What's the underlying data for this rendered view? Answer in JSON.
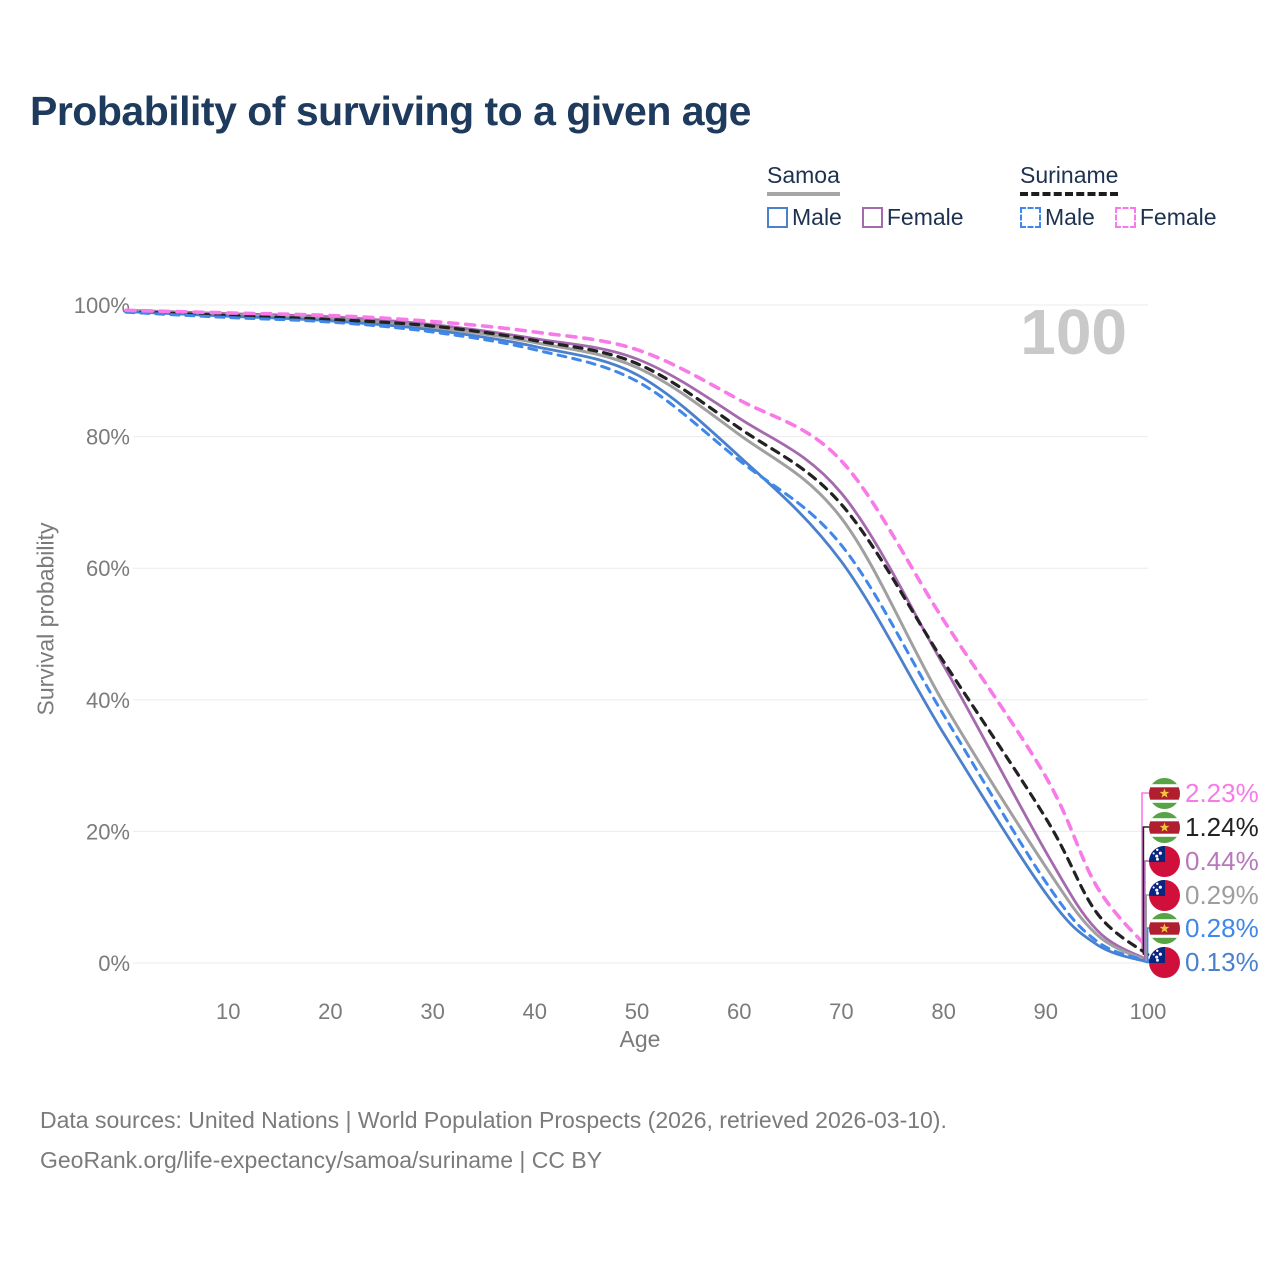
{
  "header": {
    "title": "Probability of surviving to a given age"
  },
  "legend": {
    "groups": [
      {
        "name": "Samoa",
        "line_style": "solid",
        "underline_color": "#a6a6a6",
        "items": [
          {
            "label": "Male",
            "series": "samoa_male"
          },
          {
            "label": "Female",
            "series": "samoa_female"
          }
        ]
      },
      {
        "name": "Suriname",
        "line_style": "dashed",
        "underline_color": "#1d1d1d",
        "items": [
          {
            "label": "Male",
            "series": "suriname_male"
          },
          {
            "label": "Female",
            "series": "suriname_female"
          }
        ]
      }
    ]
  },
  "watermark": "100",
  "axes": {
    "x_label": "Age",
    "y_label": "Survival probability"
  },
  "chart_data": {
    "type": "line",
    "title": "Probability of surviving to a given age",
    "xlabel": "Age",
    "ylabel": "Survival probability",
    "xlim": [
      0,
      100
    ],
    "ylim": [
      0,
      100
    ],
    "grid": "horizontal-only",
    "grid_color": "#ebebeb",
    "tick_color": "#7b7b7b",
    "legend_position": "top-right",
    "x_ticks": [
      10,
      20,
      30,
      40,
      50,
      60,
      70,
      80,
      90,
      100
    ],
    "y_ticks": [
      0,
      20,
      40,
      60,
      80,
      100
    ],
    "y_tick_suffix": "%",
    "x": [
      0,
      10,
      20,
      30,
      40,
      50,
      60,
      70,
      80,
      90,
      95,
      100
    ],
    "series": [
      {
        "key": "suriname_female",
        "name": "Suriname Female",
        "country": "Suriname",
        "sex": "Female",
        "color": "#f87ae8",
        "label_color": "#f87ae8",
        "dashed": true,
        "width": 3.6,
        "flag": "suriname",
        "end_label": "2.23%",
        "end_value": 2.23,
        "values": [
          99.2,
          98.8,
          98.4,
          97.5,
          95.9,
          93.2,
          85.6,
          76.3,
          52.1,
          28.3,
          11.6,
          2.23
        ]
      },
      {
        "key": "suriname_total",
        "name": "Suriname",
        "country": "Suriname",
        "sex": "Both",
        "color": "#222222",
        "label_color": "#222222",
        "dashed": true,
        "width": 3.2,
        "flag": "suriname",
        "end_label": "1.24%",
        "end_value": 1.24,
        "values": [
          99.0,
          98.4,
          97.8,
          96.8,
          94.6,
          91.1,
          81.3,
          69.7,
          45.8,
          22.0,
          7.6,
          1.24
        ]
      },
      {
        "key": "samoa_female",
        "name": "Samoa Female",
        "country": "Samoa",
        "sex": "Female",
        "color": "#a569ae",
        "label_color": "#b878ba",
        "dashed": false,
        "width": 2.8,
        "flag": "samoa",
        "end_label": "0.44%",
        "end_value": 0.44,
        "values": [
          99.2,
          98.7,
          98.2,
          97.0,
          94.9,
          91.8,
          82.8,
          71.4,
          45.2,
          16.9,
          5.0,
          0.44
        ]
      },
      {
        "key": "samoa_total",
        "name": "Samoa",
        "country": "Samoa",
        "sex": "Both",
        "color": "#a0a0a0",
        "label_color": "#9e9e9e",
        "dashed": false,
        "width": 3.0,
        "flag": "samoa",
        "end_label": "0.29%",
        "end_value": 0.29,
        "values": [
          99.1,
          98.5,
          97.9,
          96.6,
          94.3,
          90.5,
          80.3,
          67.6,
          39.5,
          14.6,
          4.3,
          0.29
        ]
      },
      {
        "key": "suriname_male",
        "name": "Suriname Male",
        "country": "Suriname",
        "sex": "Male",
        "color": "#3f87ea",
        "label_color": "#3f87ea",
        "dashed": true,
        "width": 3.0,
        "flag": "suriname",
        "end_label": "0.28%",
        "end_value": 0.28,
        "values": [
          98.9,
          98.1,
          97.4,
          95.9,
          93.2,
          88.4,
          76.4,
          63.5,
          37.7,
          12.3,
          3.3,
          0.28
        ]
      },
      {
        "key": "samoa_male",
        "name": "Samoa Male",
        "country": "Samoa",
        "sex": "Male",
        "color": "#4a80cc",
        "label_color": "#4a80cc",
        "dashed": false,
        "width": 2.8,
        "flag": "samoa",
        "end_label": "0.13%",
        "end_value": 0.13,
        "values": [
          99.0,
          98.3,
          97.6,
          96.2,
          93.7,
          89.4,
          77.0,
          61.0,
          34.9,
          10.6,
          2.8,
          0.13
        ]
      }
    ]
  },
  "footer": {
    "line1": "Data sources: United Nations | World Population Prospects (2026, retrieved 2026-03-10).",
    "line2": "GeoRank.org/life-expectancy/samoa/suriname | CC BY"
  }
}
